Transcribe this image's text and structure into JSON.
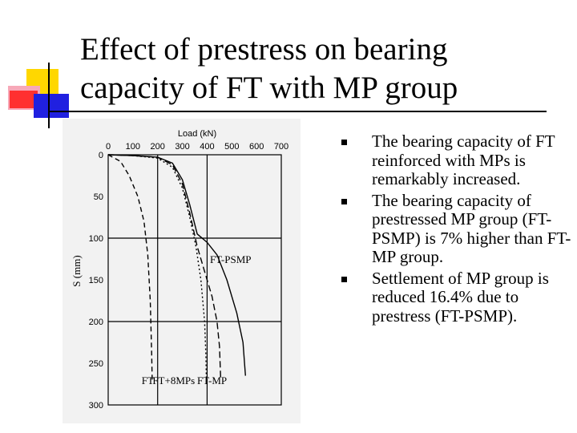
{
  "slide": {
    "title_line1": "Effect of prestress on bearing",
    "title_line2": "capacity of FT with MP group",
    "colors": {
      "yellow": "#ffd700",
      "red": "#ff3030",
      "blue": "#2020e0",
      "pink": "#f7a8b8"
    }
  },
  "bullets": [
    {
      "text": "The bearing capacity of FT reinforced with MPs is remarkably increased.",
      "icon": "square-bullet-icon"
    },
    {
      "text": "The bearing capacity of prestressed MP group (FT-PSMP) is 7% higher than FT-MP group.",
      "icon": "square-bullet-icon"
    },
    {
      "text": "Settlement of MP group is reduced 16.4% due to prestress (FT-PSMP).",
      "icon": "square-bullet-icon"
    }
  ],
  "chart_data": {
    "type": "line",
    "xlabel": "Load (kN)",
    "ylabel": "S (mm)",
    "x_ticks": [
      0,
      100,
      200,
      300,
      400,
      500,
      600,
      700
    ],
    "y_ticks": [
      0,
      50,
      100,
      150,
      200,
      250,
      300
    ],
    "xlim": [
      0,
      700
    ],
    "ylim": [
      0,
      300
    ],
    "y_inverted": true,
    "x_axis_position": "top",
    "grid": true,
    "series": [
      {
        "name": "FT",
        "dash": "6,4",
        "label_at": [
          160,
          275
        ],
        "points": [
          [
            0,
            0
          ],
          [
            50,
            8
          ],
          [
            85,
            25
          ],
          [
            120,
            50
          ],
          [
            145,
            80
          ],
          [
            160,
            120
          ],
          [
            170,
            175
          ],
          [
            176,
            240
          ],
          [
            178,
            270
          ]
        ]
      },
      {
        "name": "FT+8MPs",
        "dash": "2,3",
        "label_at": [
          265,
          275
        ],
        "points": [
          [
            0,
            0
          ],
          [
            100,
            1
          ],
          [
            200,
            4
          ],
          [
            260,
            15
          ],
          [
            300,
            40
          ],
          [
            330,
            75
          ],
          [
            355,
            110
          ],
          [
            375,
            150
          ],
          [
            390,
            200
          ],
          [
            395,
            240
          ],
          [
            397,
            270
          ]
        ]
      },
      {
        "name": "FT-MP",
        "dash": "8,4",
        "label_at": [
          420,
          275
        ],
        "points": [
          [
            0,
            0
          ],
          [
            100,
            1
          ],
          [
            200,
            3
          ],
          [
            260,
            12
          ],
          [
            300,
            35
          ],
          [
            330,
            70
          ],
          [
            360,
            110
          ],
          [
            390,
            140
          ],
          [
            420,
            170
          ],
          [
            440,
            200
          ],
          [
            450,
            230
          ],
          [
            455,
            270
          ]
        ]
      },
      {
        "name": "FT-PSMP",
        "dash": "",
        "label_at": [
          495,
          130
        ],
        "points": [
          [
            0,
            0
          ],
          [
            100,
            1
          ],
          [
            200,
            3
          ],
          [
            260,
            10
          ],
          [
            300,
            30
          ],
          [
            330,
            60
          ],
          [
            360,
            95
          ],
          [
            400,
            105
          ],
          [
            440,
            120
          ],
          [
            480,
            150
          ],
          [
            520,
            190
          ],
          [
            545,
            225
          ],
          [
            555,
            265
          ]
        ]
      }
    ]
  }
}
